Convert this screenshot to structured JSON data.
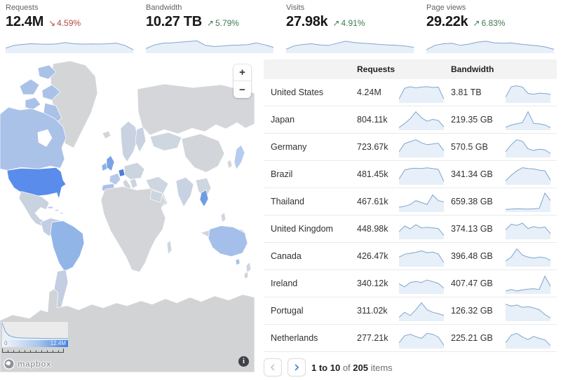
{
  "cards": [
    {
      "label": "Requests",
      "value": "12.4M",
      "delta": "4.59%",
      "direction": "down",
      "arrow": "↘",
      "spark": [
        0.25,
        0.42,
        0.48,
        0.52,
        0.5,
        0.49,
        0.51,
        0.6,
        0.52,
        0.5,
        0.51,
        0.5,
        0.52,
        0.56,
        0.42,
        0.15
      ]
    },
    {
      "label": "Bandwidth",
      "value": "10.27 TB",
      "delta": "5.79%",
      "direction": "up",
      "arrow": "↗",
      "spark": [
        0.22,
        0.45,
        0.55,
        0.58,
        0.62,
        0.66,
        0.7,
        0.42,
        0.35,
        0.38,
        0.42,
        0.44,
        0.47,
        0.58,
        0.45,
        0.3
      ]
    },
    {
      "label": "Visits",
      "value": "27.98k",
      "delta": "4.91%",
      "direction": "up",
      "arrow": "↗",
      "spark": [
        0.18,
        0.4,
        0.48,
        0.52,
        0.45,
        0.42,
        0.55,
        0.68,
        0.6,
        0.55,
        0.52,
        0.48,
        0.45,
        0.42,
        0.38,
        0.3
      ]
    },
    {
      "label": "Page views",
      "value": "29.22k",
      "delta": "6.83%",
      "direction": "up",
      "arrow": "↗",
      "spark": [
        0.15,
        0.42,
        0.52,
        0.55,
        0.42,
        0.5,
        0.62,
        0.68,
        0.58,
        0.55,
        0.57,
        0.5,
        0.45,
        0.4,
        0.32,
        0.18
      ]
    }
  ],
  "colors": {
    "delta_up": "#3e7a54",
    "delta_down": "#b5443c",
    "spark_line": "#7fa6cf",
    "spark_fill": "#e7eff8",
    "accent_blue": "#3b7dd8"
  },
  "map": {
    "zoom_in": "+",
    "zoom_out": "−",
    "legend_min": "0",
    "legend_max": "12.4M",
    "legend_curve": [
      1,
      0.45,
      0.22,
      0.14,
      0.1,
      0.08,
      0.07,
      0.06,
      0.055,
      0.05,
      0.05,
      0.045,
      0.04,
      0.04,
      0.035,
      0.035,
      0.03,
      0.03,
      0.03,
      0.03
    ],
    "attribution": "mapbox",
    "info_glyph": "i",
    "country_colors": {
      "us": "#5a8cec",
      "canada": "#aac2e8",
      "brazil": "#92b5e8",
      "australia": "#a4c0ea",
      "germany": "#4b7ed9",
      "uk": "#7aa3e3",
      "ireland": "#8fb2e6",
      "thailand": "#6f9ce4",
      "japan": "#b6cbee"
    }
  },
  "table": {
    "columns": [
      "Requests",
      "Bandwidth"
    ],
    "rows": [
      {
        "country": "United States",
        "requests": "4.24M",
        "bandwidth": "3.81 TB",
        "req_spark": [
          0.15,
          0.72,
          0.8,
          0.74,
          0.78,
          0.8,
          0.76,
          0.78,
          0.15
        ],
        "bw_spark": [
          0.25,
          0.8,
          0.85,
          0.78,
          0.45,
          0.4,
          0.46,
          0.44,
          0.4
        ]
      },
      {
        "country": "Japan",
        "requests": "804.11k",
        "bandwidth": "219.35 GB",
        "req_spark": [
          0.08,
          0.3,
          0.55,
          0.92,
          0.6,
          0.42,
          0.52,
          0.46,
          0.12
        ],
        "bw_spark": [
          0.1,
          0.22,
          0.28,
          0.35,
          0.92,
          0.3,
          0.28,
          0.22,
          0.08
        ]
      },
      {
        "country": "Germany",
        "requests": "723.67k",
        "bandwidth": "570.5 GB",
        "req_spark": [
          0.25,
          0.68,
          0.78,
          0.88,
          0.72,
          0.62,
          0.66,
          0.7,
          0.3
        ],
        "bw_spark": [
          0.25,
          0.62,
          0.88,
          0.8,
          0.4,
          0.32,
          0.38,
          0.35,
          0.15
        ]
      },
      {
        "country": "Brazil",
        "requests": "481.45k",
        "bandwidth": "341.34 GB",
        "req_spark": [
          0.25,
          0.72,
          0.8,
          0.82,
          0.8,
          0.84,
          0.8,
          0.76,
          0.12
        ],
        "bw_spark": [
          0.15,
          0.45,
          0.68,
          0.85,
          0.8,
          0.78,
          0.72,
          0.68,
          0.18
        ]
      },
      {
        "country": "Thailand",
        "requests": "467.61k",
        "bandwidth": "659.38 GB",
        "req_spark": [
          0.2,
          0.25,
          0.35,
          0.55,
          0.45,
          0.35,
          0.85,
          0.55,
          0.48
        ],
        "bw_spark": [
          0.08,
          0.1,
          0.12,
          0.11,
          0.1,
          0.12,
          0.14,
          0.95,
          0.55
        ]
      },
      {
        "country": "United Kingdom",
        "requests": "448.98k",
        "bandwidth": "374.13 GB",
        "req_spark": [
          0.35,
          0.65,
          0.5,
          0.72,
          0.55,
          0.58,
          0.55,
          0.52,
          0.15
        ],
        "bw_spark": [
          0.45,
          0.75,
          0.68,
          0.8,
          0.52,
          0.62,
          0.55,
          0.6,
          0.25
        ]
      },
      {
        "country": "Canada",
        "requests": "426.47k",
        "bandwidth": "396.48 GB",
        "req_spark": [
          0.45,
          0.6,
          0.65,
          0.7,
          0.78,
          0.68,
          0.72,
          0.62,
          0.15
        ],
        "bw_spark": [
          0.25,
          0.45,
          0.88,
          0.55,
          0.45,
          0.4,
          0.45,
          0.42,
          0.28
        ]
      },
      {
        "country": "Ireland",
        "requests": "340.12k",
        "bandwidth": "407.47 GB",
        "req_spark": [
          0.48,
          0.32,
          0.55,
          0.6,
          0.55,
          0.68,
          0.6,
          0.5,
          0.25
        ],
        "bw_spark": [
          0.1,
          0.18,
          0.1,
          0.16,
          0.2,
          0.22,
          0.18,
          0.88,
          0.35
        ]
      },
      {
        "country": "Portugal",
        "requests": "311.02k",
        "bandwidth": "126.32 GB",
        "req_spark": [
          0.15,
          0.42,
          0.25,
          0.55,
          0.92,
          0.55,
          0.42,
          0.35,
          0.25
        ],
        "bw_spark": [
          0.85,
          0.75,
          0.8,
          0.68,
          0.72,
          0.65,
          0.55,
          0.3,
          0.12
        ]
      },
      {
        "country": "Netherlands",
        "requests": "277.21k",
        "bandwidth": "225.21 GB",
        "req_spark": [
          0.25,
          0.62,
          0.7,
          0.58,
          0.48,
          0.75,
          0.7,
          0.55,
          0.12
        ],
        "bw_spark": [
          0.25,
          0.65,
          0.75,
          0.55,
          0.42,
          0.58,
          0.48,
          0.4,
          0.1
        ]
      }
    ],
    "pagination": {
      "range": "1 to 10",
      "of_label": "of",
      "total": "205",
      "items_label": "items"
    }
  }
}
